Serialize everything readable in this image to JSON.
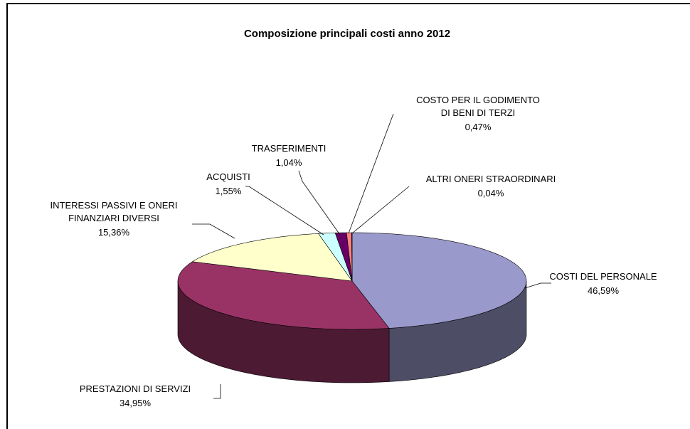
{
  "chart_data": {
    "type": "pie",
    "title": "Composizione principali costi anno 2012",
    "categories": [
      "COSTI DEL PERSONALE",
      "PRESTAZIONI DI SERVIZI",
      "INTERESSI PASSIVI E ONERI FINANZIARI DIVERSI",
      "ACQUISTI",
      "TRASFERIMENTI",
      "COSTO PER IL GODIMENTO DI BENI DI TERZI",
      "ALTRI ONERI STRAORDINARI"
    ],
    "values": [
      46.59,
      34.95,
      15.36,
      1.55,
      1.04,
      0.47,
      0.04
    ],
    "value_labels": [
      "46,59%",
      "34,95%",
      "15,36%",
      "1,55%",
      "1,04%",
      "0,47%",
      "0,04%"
    ],
    "colors": [
      "#9999cc",
      "#993366",
      "#ffffcc",
      "#ccffff",
      "#660066",
      "#ff8080",
      "#0066cc"
    ]
  }
}
